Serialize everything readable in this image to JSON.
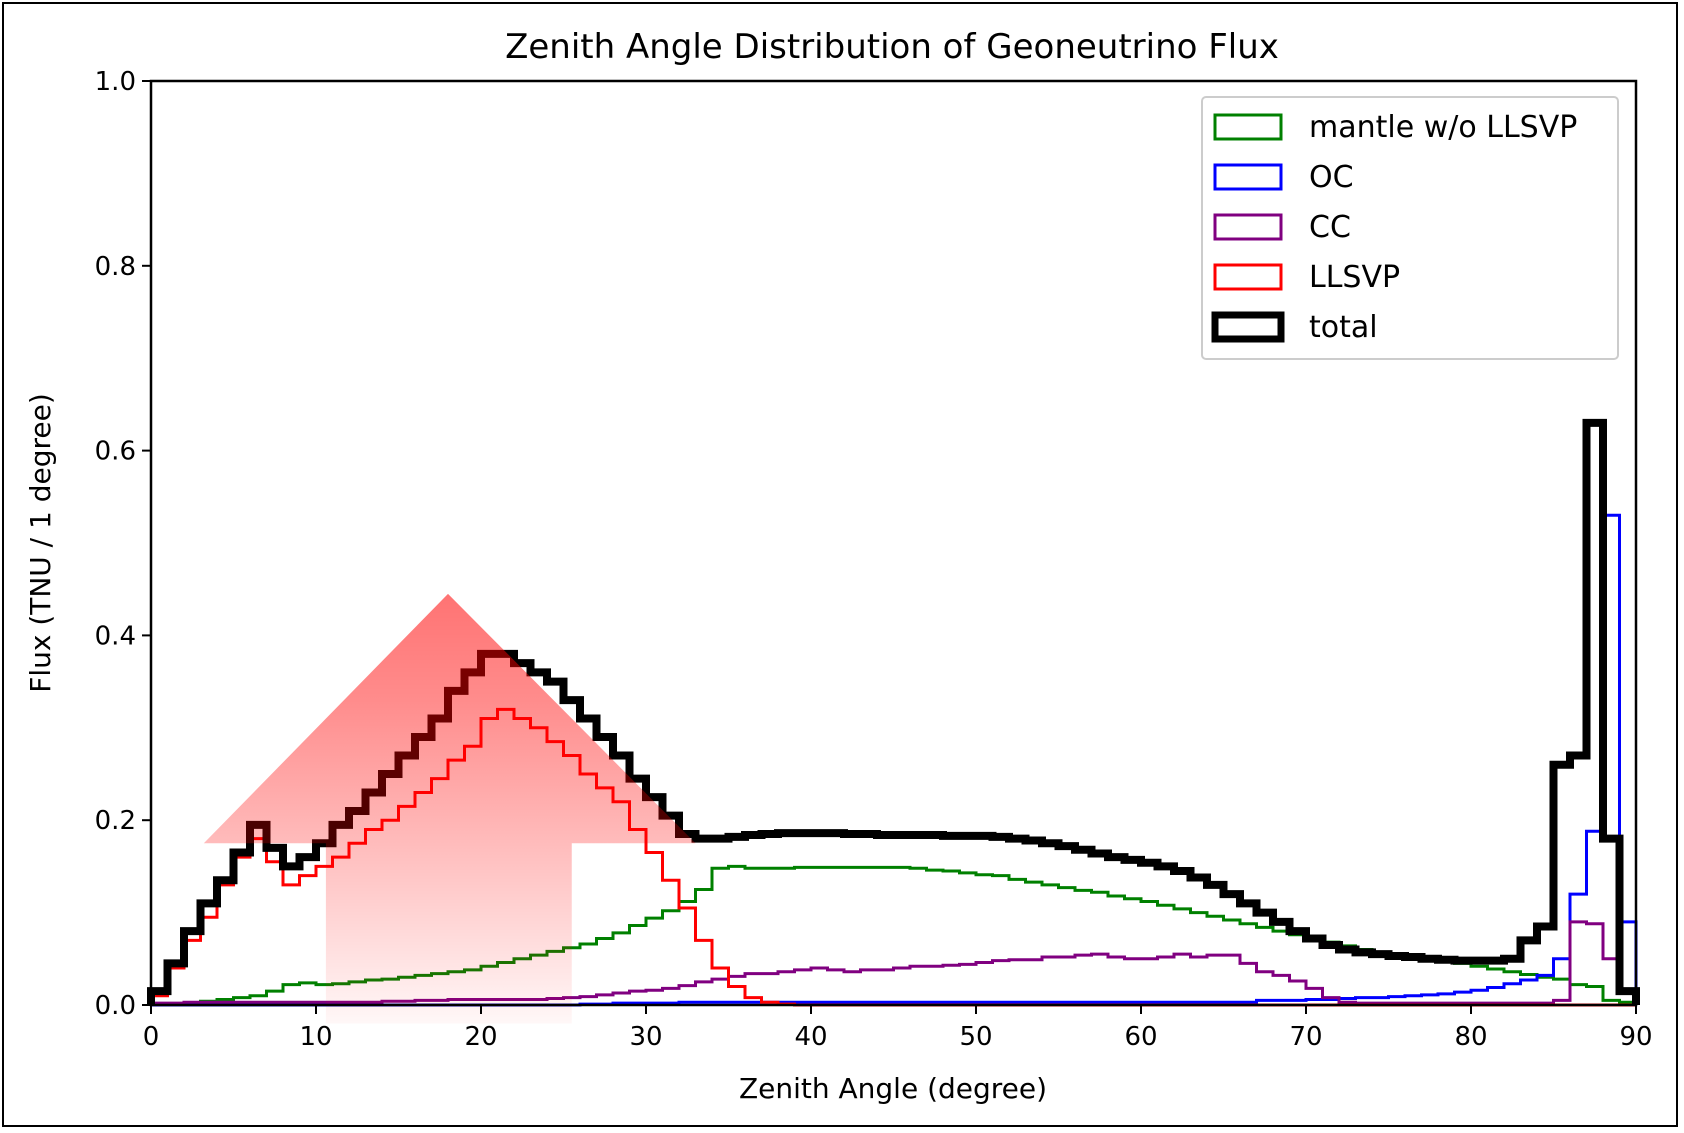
{
  "chart_data": {
    "type": "histogram-step",
    "title": "Zenith Angle Distribution of Geoneutrino Flux",
    "xlabel": "Zenith Angle (degree)",
    "ylabel": "Flux (TNU / 1 degree)",
    "xlim": [
      0,
      90
    ],
    "ylim": [
      0,
      1.0
    ],
    "xticks": [
      "0",
      "10",
      "20",
      "30",
      "40",
      "50",
      "60",
      "70",
      "80",
      "90"
    ],
    "yticks": [
      "0.0",
      "0.2",
      "0.4",
      "0.6",
      "0.8",
      "1.0"
    ],
    "grid": false,
    "legend_position": "top-right",
    "bin_width_degree": 1,
    "series": [
      {
        "name": "mantle w/o LLSVP",
        "color": "#008000",
        "values": [
          0.0,
          0.0,
          0.002,
          0.004,
          0.006,
          0.008,
          0.01,
          0.015,
          0.022,
          0.024,
          0.022,
          0.023,
          0.025,
          0.027,
          0.028,
          0.03,
          0.032,
          0.034,
          0.036,
          0.038,
          0.042,
          0.046,
          0.05,
          0.054,
          0.058,
          0.062,
          0.066,
          0.072,
          0.078,
          0.086,
          0.094,
          0.102,
          0.112,
          0.125,
          0.148,
          0.15,
          0.148,
          0.148,
          0.148,
          0.149,
          0.149,
          0.149,
          0.149,
          0.149,
          0.149,
          0.149,
          0.148,
          0.146,
          0.145,
          0.143,
          0.141,
          0.14,
          0.136,
          0.133,
          0.13,
          0.127,
          0.124,
          0.122,
          0.118,
          0.115,
          0.112,
          0.108,
          0.104,
          0.1,
          0.096,
          0.092,
          0.088,
          0.084,
          0.08,
          0.076,
          0.072,
          0.068,
          0.064,
          0.06,
          0.056,
          0.054,
          0.052,
          0.05,
          0.048,
          0.045,
          0.042,
          0.039,
          0.036,
          0.033,
          0.03,
          0.028,
          0.022,
          0.02,
          0.005,
          0.003
        ]
      },
      {
        "name": "OC",
        "color": "#0000ff",
        "values": [
          0.0,
          0.0,
          0.0,
          0.0,
          0.0,
          0.0,
          0.0,
          0.0,
          0.0,
          0.0,
          0.0,
          0.0,
          0.0,
          0.0,
          0.0,
          0.0,
          0.0,
          0.0,
          0.0,
          0.0,
          0.0,
          0.0,
          0.0,
          0.0,
          0.0,
          0.0,
          0.001,
          0.001,
          0.002,
          0.002,
          0.002,
          0.002,
          0.003,
          0.003,
          0.003,
          0.003,
          0.003,
          0.003,
          0.003,
          0.003,
          0.003,
          0.003,
          0.003,
          0.003,
          0.003,
          0.003,
          0.003,
          0.003,
          0.003,
          0.003,
          0.003,
          0.003,
          0.003,
          0.003,
          0.003,
          0.003,
          0.003,
          0.003,
          0.003,
          0.003,
          0.003,
          0.003,
          0.003,
          0.003,
          0.003,
          0.003,
          0.003,
          0.005,
          0.005,
          0.005,
          0.006,
          0.006,
          0.007,
          0.008,
          0.008,
          0.009,
          0.01,
          0.011,
          0.012,
          0.014,
          0.016,
          0.019,
          0.023,
          0.027,
          0.032,
          0.05,
          0.12,
          0.188,
          0.53,
          0.09
        ]
      },
      {
        "name": "CC",
        "color": "#800080",
        "values": [
          0.002,
          0.002,
          0.003,
          0.003,
          0.003,
          0.003,
          0.003,
          0.003,
          0.003,
          0.003,
          0.003,
          0.003,
          0.003,
          0.003,
          0.004,
          0.004,
          0.005,
          0.005,
          0.006,
          0.006,
          0.006,
          0.006,
          0.006,
          0.006,
          0.007,
          0.008,
          0.009,
          0.011,
          0.013,
          0.015,
          0.016,
          0.018,
          0.021,
          0.025,
          0.028,
          0.031,
          0.034,
          0.034,
          0.036,
          0.038,
          0.04,
          0.038,
          0.036,
          0.038,
          0.038,
          0.04,
          0.042,
          0.042,
          0.043,
          0.044,
          0.046,
          0.048,
          0.049,
          0.049,
          0.052,
          0.052,
          0.054,
          0.055,
          0.052,
          0.05,
          0.05,
          0.052,
          0.055,
          0.052,
          0.054,
          0.054,
          0.045,
          0.036,
          0.032,
          0.026,
          0.018,
          0.008,
          0.003,
          0.002,
          0.002,
          0.002,
          0.002,
          0.002,
          0.002,
          0.002,
          0.002,
          0.002,
          0.002,
          0.002,
          0.002,
          0.005,
          0.09,
          0.088,
          0.05,
          0.015
        ]
      },
      {
        "name": "LLSVP",
        "color": "#ff0000",
        "values": [
          0.01,
          0.04,
          0.07,
          0.095,
          0.13,
          0.16,
          0.18,
          0.155,
          0.13,
          0.14,
          0.15,
          0.16,
          0.175,
          0.19,
          0.2,
          0.215,
          0.23,
          0.245,
          0.265,
          0.28,
          0.31,
          0.32,
          0.31,
          0.3,
          0.285,
          0.27,
          0.25,
          0.235,
          0.22,
          0.19,
          0.165,
          0.135,
          0.105,
          0.07,
          0.04,
          0.02,
          0.008,
          0.003,
          0.001,
          0.0,
          0.0,
          0.0,
          0.0,
          0.0,
          0.0,
          0.0,
          0.0,
          0.0,
          0.0,
          0.0,
          0.0,
          0.0,
          0.0,
          0.0,
          0.0,
          0.0,
          0.0,
          0.0,
          0.0,
          0.0,
          0.0,
          0.0,
          0.0,
          0.0,
          0.0,
          0.0,
          0.0,
          0.0,
          0.0,
          0.0,
          0.0,
          0.0,
          0.0,
          0.0,
          0.0,
          0.0,
          0.0,
          0.0,
          0.0,
          0.0,
          0.0,
          0.0,
          0.0,
          0.0,
          0.0,
          0.0,
          0.0,
          0.0,
          0.0,
          0.0
        ]
      },
      {
        "name": "total",
        "color": "#000000",
        "values": [
          0.015,
          0.045,
          0.08,
          0.11,
          0.135,
          0.165,
          0.195,
          0.17,
          0.15,
          0.16,
          0.175,
          0.195,
          0.21,
          0.23,
          0.25,
          0.27,
          0.29,
          0.31,
          0.34,
          0.36,
          0.38,
          0.38,
          0.37,
          0.36,
          0.35,
          0.33,
          0.31,
          0.29,
          0.27,
          0.245,
          0.225,
          0.205,
          0.185,
          0.18,
          0.18,
          0.182,
          0.184,
          0.185,
          0.186,
          0.186,
          0.186,
          0.186,
          0.185,
          0.185,
          0.184,
          0.184,
          0.184,
          0.184,
          0.183,
          0.183,
          0.183,
          0.182,
          0.18,
          0.178,
          0.175,
          0.172,
          0.168,
          0.164,
          0.16,
          0.157,
          0.154,
          0.15,
          0.145,
          0.138,
          0.13,
          0.12,
          0.11,
          0.1,
          0.09,
          0.08,
          0.072,
          0.065,
          0.06,
          0.057,
          0.055,
          0.053,
          0.052,
          0.05,
          0.049,
          0.048,
          0.048,
          0.048,
          0.05,
          0.07,
          0.085,
          0.26,
          0.27,
          0.63,
          0.18,
          0.015
        ]
      }
    ],
    "annotation": {
      "type": "up-arrow",
      "color": "#ff0000",
      "description_tip_x": 18.0,
      "description_tip_y": 0.445,
      "head_left_x": 3.2,
      "head_right_x": 33.0,
      "head_base_y": 0.175,
      "shaft_left_x": 10.6,
      "shaft_right_x": 25.5,
      "shaft_bottom_y": -0.02
    }
  }
}
